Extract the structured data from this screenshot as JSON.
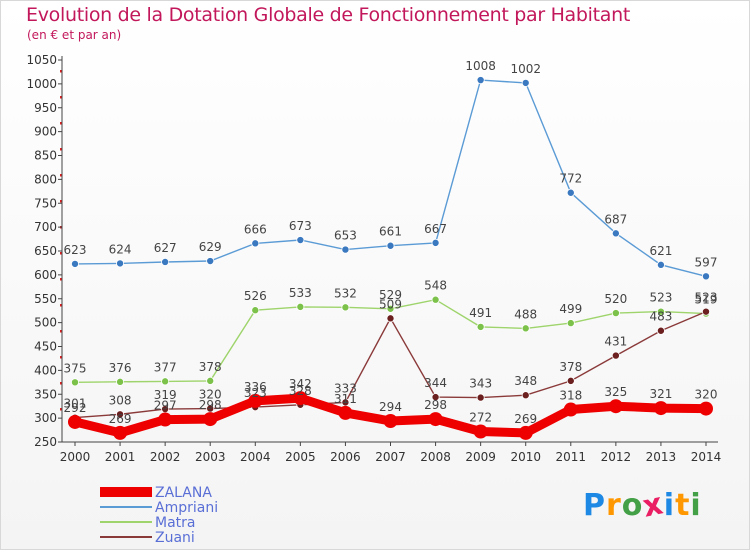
{
  "title": "Evolution de la Dotation Globale de Fonctionnement par Habitant",
  "subtitle": "(en € et par an)",
  "logo": {
    "text": "Proxiti",
    "letters": [
      "P",
      "r",
      "o",
      "x",
      "i",
      "t",
      "i"
    ],
    "colors": [
      "#1e88e5",
      "#ff9800",
      "#43a047",
      "#e91e63",
      "#1e88e5",
      "#ff9800",
      "#43a047"
    ]
  },
  "chart_data": {
    "type": "line",
    "title": "Evolution de la Dotation Globale de Fonctionnement par Habitant",
    "subtitle": "(en € et par an)",
    "xlabel": "",
    "ylabel": "",
    "ylim": [
      250,
      1050
    ],
    "yticks": [
      250,
      300,
      350,
      400,
      450,
      500,
      550,
      600,
      650,
      700,
      750,
      800,
      850,
      900,
      950,
      1000,
      1050
    ],
    "x": [
      "2000",
      "2001",
      "2002",
      "2003",
      "2004",
      "2005",
      "2006",
      "2007",
      "2008",
      "2009",
      "2010",
      "2011",
      "2012",
      "2013",
      "2014"
    ],
    "grid": false,
    "legend_position": "bottom-left",
    "series": [
      {
        "name": "ZALANA",
        "color": "#ee0000",
        "style": "thick",
        "values": [
          292,
          269,
          297,
          298,
          336,
          342,
          311,
          294,
          298,
          272,
          269,
          318,
          325,
          321,
          320
        ],
        "labels": [
          "292",
          "269",
          "297",
          "298",
          "336",
          "342",
          "311",
          "294",
          "298",
          "272",
          "269",
          "318",
          "325",
          "321",
          "320"
        ]
      },
      {
        "name": "Ampriani",
        "color": "#5b9bd5",
        "marker": "#3a78c0",
        "style": "thin",
        "values": [
          623,
          624,
          627,
          629,
          666,
          673,
          653,
          661,
          667,
          1008,
          1002,
          772,
          687,
          621,
          597
        ],
        "labels": [
          "623",
          "624",
          "627",
          "629",
          "666",
          "673",
          "653",
          "661",
          "667",
          "1008",
          "1002",
          "772",
          "687",
          "621",
          "597"
        ]
      },
      {
        "name": "Matra",
        "color": "#9ed46b",
        "marker": "#7cc24a",
        "style": "thin",
        "values": [
          375,
          376,
          377,
          378,
          526,
          533,
          532,
          529,
          548,
          491,
          488,
          499,
          520,
          523,
          519
        ],
        "labels": [
          "375",
          "376",
          "377",
          "378",
          "526",
          "533",
          "532",
          "529",
          "548",
          "491",
          "488",
          "499",
          "520",
          "523",
          "519"
        ]
      },
      {
        "name": "Zuani",
        "color": "#8b3a3a",
        "marker": "#6b1f1f",
        "style": "thin",
        "values": [
          301,
          308,
          319,
          320,
          323,
          328,
          333,
          509,
          344,
          343,
          348,
          378,
          431,
          483,
          523
        ],
        "labels": [
          "301",
          "308",
          "319",
          "320",
          "323",
          "328",
          "333",
          "509",
          "344",
          "343",
          "348",
          "378",
          "431",
          "483",
          "523"
        ]
      }
    ]
  }
}
